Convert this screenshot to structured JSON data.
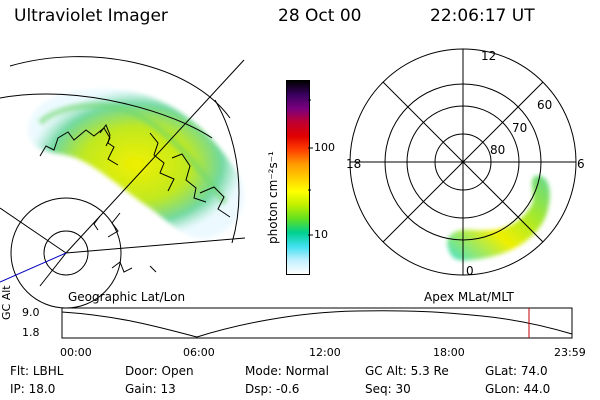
{
  "header": {
    "instrument": "Ultraviolet Imager",
    "date": "28 Oct 00",
    "time": "22:06:17 UT"
  },
  "geo_panel": {
    "label": "Geographic Lat/Lon"
  },
  "apex_panel": {
    "label": "Apex MLat/MLT",
    "mlt_labels": [
      "12",
      "18",
      "6",
      "0"
    ],
    "mlat_labels": [
      "60",
      "70",
      "80"
    ]
  },
  "colorbar": {
    "unit_label": "photon cm⁻²s⁻¹",
    "ticks": [
      "100",
      "10"
    ],
    "colors": [
      "#000000",
      "#3a0060",
      "#7a0080",
      "#c00030",
      "#e00000",
      "#ff4000",
      "#ff9900",
      "#ffcc00",
      "#ffff00",
      "#c0f000",
      "#60e020",
      "#00d090",
      "#40e0f0",
      "#c0f0ff",
      "#ffffff"
    ]
  },
  "altitude_plot": {
    "axis_label": "GC Alt",
    "y_ticks": [
      "9.0",
      "1.8"
    ],
    "x_ticks": [
      "00:00",
      "06:00",
      "12:00",
      "18:00",
      "23:59"
    ],
    "marker_color": "#c00000"
  },
  "status": {
    "filter_label": "Flt:",
    "filter_value": "LBHL",
    "door_label": "Door:",
    "door_value": "Open",
    "mode_label": "Mode:",
    "mode_value": "Normal",
    "gcalt_label": "GC Alt:",
    "gcalt_value": "5.3 Re",
    "glat_label": "GLat:",
    "glat_value": "74.0",
    "ip_label": "IP:",
    "ip_value": "18.0",
    "gain_label": "Gain:",
    "gain_value": "13",
    "dsp_label": "Dsp:",
    "dsp_value": "-0.6",
    "seq_label": "Seq:",
    "seq_value": "30",
    "glon_label": "GLon:",
    "glon_value": "44.0"
  }
}
